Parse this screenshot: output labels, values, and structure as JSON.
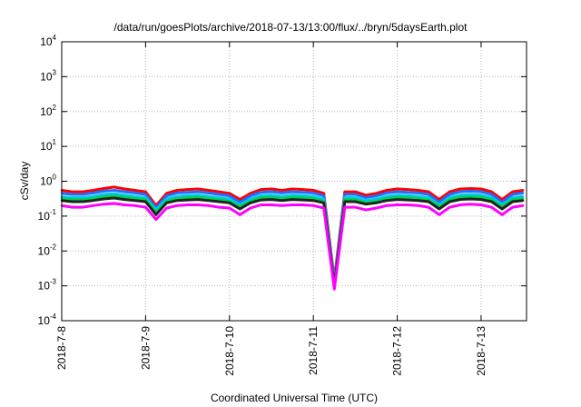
{
  "chart_data": {
    "type": "area",
    "title": "/data/run/goesPlots/archive/2018-07-13/13:00/flux/../bryn/5daysEarth.plot",
    "xlabel": "Coordinated Universal Time (UTC)",
    "ylabel": "cSv/day",
    "y_scale": "log",
    "ylim": [
      0.0001,
      10000
    ],
    "y_ticks": [
      {
        "base": "10",
        "exp": "-4",
        "value": 0.0001
      },
      {
        "base": "10",
        "exp": "-3",
        "value": 0.001
      },
      {
        "base": "10",
        "exp": "-2",
        "value": 0.01
      },
      {
        "base": "10",
        "exp": "-1",
        "value": 0.1
      },
      {
        "base": "10",
        "exp": "0",
        "value": 1
      },
      {
        "base": "10",
        "exp": "1",
        "value": 10
      },
      {
        "base": "10",
        "exp": "2",
        "value": 100
      },
      {
        "base": "10",
        "exp": "3",
        "value": 1000
      },
      {
        "base": "10",
        "exp": "4",
        "value": 10000
      }
    ],
    "xlim": [
      "2018-07-08 00:00",
      "2018-07-13 13:00"
    ],
    "x_ticks": [
      {
        "label": "2018-7-8",
        "value": "2018-07-08"
      },
      {
        "label": "2018-7-9",
        "value": "2018-07-09"
      },
      {
        "label": "2018-7-10",
        "value": "2018-07-10"
      },
      {
        "label": "2018-7-11",
        "value": "2018-07-11"
      },
      {
        "label": "2018-7-12",
        "value": "2018-07-12"
      },
      {
        "label": "2018-7-13",
        "value": "2018-07-13"
      }
    ],
    "grid": true,
    "x_hours": [
      0,
      3,
      6,
      9,
      12,
      15,
      18,
      21,
      24,
      27,
      30,
      33,
      36,
      39,
      42,
      45,
      48,
      51,
      54,
      57,
      60,
      63,
      66,
      69,
      72,
      75,
      78,
      81,
      84,
      87,
      90,
      93,
      96,
      99,
      102,
      105,
      108,
      111,
      114,
      117,
      120,
      123,
      126,
      129,
      132
    ],
    "series": [
      {
        "color": "#ff0000",
        "values": [
          0.55,
          0.5,
          0.5,
          0.55,
          0.62,
          0.68,
          0.6,
          0.55,
          0.5,
          0.2,
          0.45,
          0.55,
          0.58,
          0.6,
          0.55,
          0.5,
          0.45,
          0.3,
          0.45,
          0.58,
          0.6,
          0.55,
          0.6,
          0.58,
          0.55,
          0.45,
          0.0015,
          0.5,
          0.5,
          0.4,
          0.45,
          0.55,
          0.6,
          0.58,
          0.55,
          0.5,
          0.3,
          0.5,
          0.6,
          0.62,
          0.6,
          0.5,
          0.3,
          0.5,
          0.55
        ]
      },
      {
        "color": "#1f6fff",
        "values": [
          0.45,
          0.42,
          0.42,
          0.46,
          0.52,
          0.55,
          0.5,
          0.46,
          0.42,
          0.17,
          0.38,
          0.46,
          0.48,
          0.5,
          0.46,
          0.42,
          0.38,
          0.25,
          0.38,
          0.48,
          0.5,
          0.46,
          0.5,
          0.48,
          0.46,
          0.38,
          0.0013,
          0.42,
          0.42,
          0.34,
          0.38,
          0.46,
          0.5,
          0.48,
          0.46,
          0.42,
          0.25,
          0.42,
          0.5,
          0.52,
          0.5,
          0.42,
          0.25,
          0.42,
          0.46
        ]
      },
      {
        "color": "#00c8ff",
        "values": [
          0.36,
          0.34,
          0.34,
          0.37,
          0.42,
          0.44,
          0.4,
          0.37,
          0.34,
          0.15,
          0.31,
          0.37,
          0.39,
          0.4,
          0.37,
          0.34,
          0.31,
          0.21,
          0.31,
          0.39,
          0.4,
          0.37,
          0.4,
          0.39,
          0.37,
          0.31,
          0.0012,
          0.34,
          0.34,
          0.28,
          0.31,
          0.37,
          0.4,
          0.39,
          0.37,
          0.34,
          0.21,
          0.34,
          0.4,
          0.42,
          0.4,
          0.34,
          0.21,
          0.34,
          0.37
        ]
      },
      {
        "color": "#00d050",
        "values": [
          0.32,
          0.3,
          0.3,
          0.32,
          0.36,
          0.38,
          0.35,
          0.32,
          0.3,
          0.13,
          0.27,
          0.32,
          0.34,
          0.35,
          0.32,
          0.3,
          0.27,
          0.19,
          0.27,
          0.34,
          0.35,
          0.32,
          0.35,
          0.34,
          0.32,
          0.27,
          0.0011,
          0.3,
          0.3,
          0.25,
          0.27,
          0.32,
          0.35,
          0.34,
          0.32,
          0.3,
          0.19,
          0.3,
          0.35,
          0.36,
          0.35,
          0.3,
          0.19,
          0.3,
          0.32
        ]
      },
      {
        "color": "#222222",
        "values": [
          0.28,
          0.26,
          0.26,
          0.28,
          0.31,
          0.33,
          0.3,
          0.28,
          0.26,
          0.11,
          0.24,
          0.28,
          0.29,
          0.3,
          0.28,
          0.26,
          0.24,
          0.16,
          0.24,
          0.29,
          0.3,
          0.28,
          0.3,
          0.29,
          0.28,
          0.24,
          0.001,
          0.26,
          0.26,
          0.22,
          0.24,
          0.28,
          0.3,
          0.29,
          0.28,
          0.26,
          0.16,
          0.26,
          0.3,
          0.31,
          0.3,
          0.26,
          0.16,
          0.26,
          0.28
        ]
      },
      {
        "color": "#ff00ff",
        "values": [
          0.2,
          0.18,
          0.18,
          0.2,
          0.22,
          0.23,
          0.21,
          0.2,
          0.18,
          0.08,
          0.17,
          0.2,
          0.21,
          0.21,
          0.2,
          0.18,
          0.17,
          0.11,
          0.17,
          0.21,
          0.21,
          0.2,
          0.21,
          0.21,
          0.2,
          0.17,
          0.0008,
          0.18,
          0.18,
          0.15,
          0.17,
          0.2,
          0.21,
          0.21,
          0.2,
          0.18,
          0.11,
          0.18,
          0.21,
          0.22,
          0.21,
          0.18,
          0.11,
          0.18,
          0.2
        ]
      }
    ]
  }
}
